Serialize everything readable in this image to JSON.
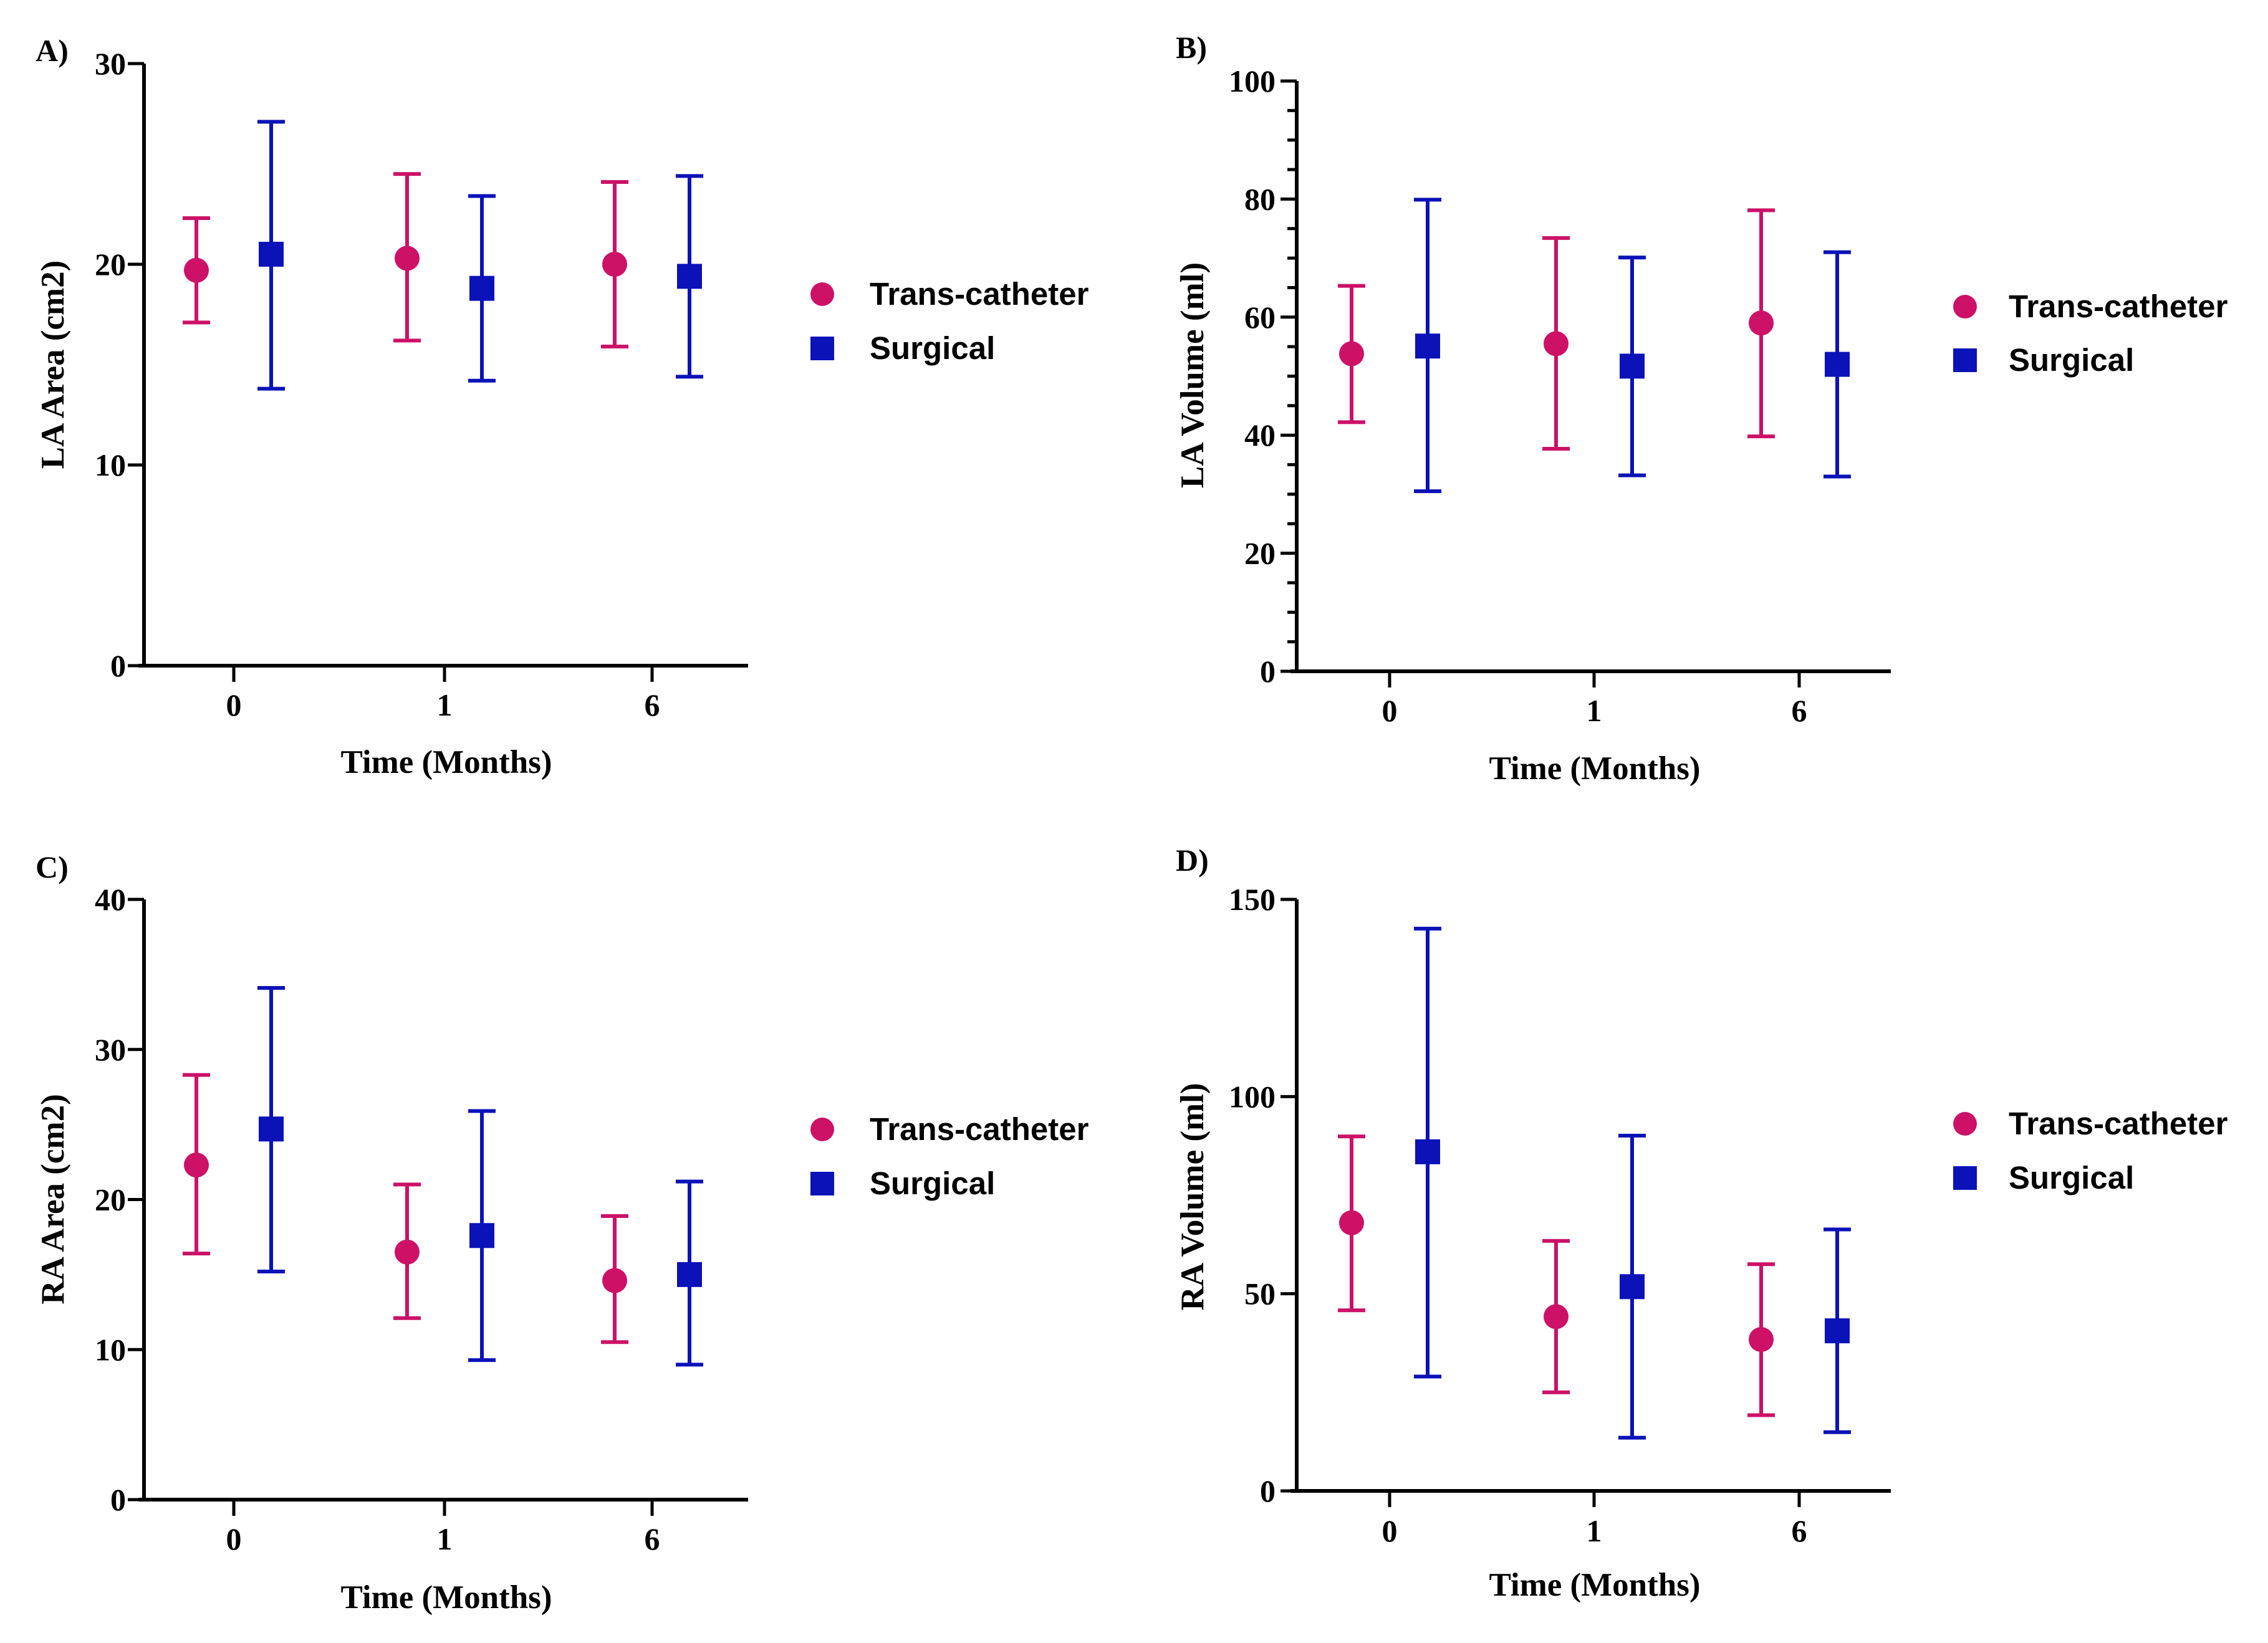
{
  "figure": {
    "colors": {
      "trans_catheter": "#CC1167",
      "surgical": "#0A12B8",
      "axis": "#000000"
    },
    "legend": [
      {
        "name": "Trans-catheter",
        "marker": "circle"
      },
      {
        "name": "Surgical",
        "marker": "square"
      }
    ]
  },
  "chart_data": [
    {
      "id": "A",
      "panel_label": "A)",
      "type": "scatter",
      "xlabel": "Time (Months)",
      "ylabel": "LA Area (cm2)",
      "categories": [
        "0",
        "1",
        "6"
      ],
      "ylim": [
        0,
        30
      ],
      "yticks": [
        0,
        10,
        20,
        30
      ],
      "minor_step": 0,
      "error_bars": "mean ± SD",
      "series": [
        {
          "name": "Trans-catheter",
          "marker": "circle",
          "values": [
            19.7,
            20.3,
            20.0
          ],
          "lower": [
            17.1,
            16.2,
            15.9
          ],
          "upper": [
            22.3,
            24.5,
            24.1
          ]
        },
        {
          "name": "Surgical",
          "marker": "square",
          "values": [
            20.5,
            18.8,
            19.4
          ],
          "lower": [
            13.8,
            14.2,
            14.4
          ],
          "upper": [
            27.1,
            23.4,
            24.4
          ]
        }
      ]
    },
    {
      "id": "B",
      "panel_label": "B)",
      "type": "scatter",
      "xlabel": "Time (Months)",
      "ylabel": "LA Volume (ml)",
      "categories": [
        "0",
        "1",
        "6"
      ],
      "ylim": [
        0,
        100
      ],
      "yticks": [
        0,
        20,
        40,
        60,
        80,
        100
      ],
      "minor_step": 5,
      "error_bars": "mean ± SD",
      "series": [
        {
          "name": "Trans-catheter",
          "marker": "circle",
          "values": [
            53.8,
            55.5,
            59.0
          ],
          "lower": [
            42.2,
            37.7,
            39.8
          ],
          "upper": [
            65.3,
            73.4,
            78.1
          ]
        },
        {
          "name": "Surgical",
          "marker": "square",
          "values": [
            55.1,
            51.7,
            52.0
          ],
          "lower": [
            30.5,
            33.2,
            33.0
          ],
          "upper": [
            79.9,
            70.1,
            71.0
          ]
        }
      ]
    },
    {
      "id": "C",
      "panel_label": "C)",
      "type": "scatter",
      "xlabel": "Time (Months)",
      "ylabel": "RA Area (cm2)",
      "categories": [
        "0",
        "1",
        "6"
      ],
      "ylim": [
        0,
        40
      ],
      "yticks": [
        0,
        10,
        20,
        30,
        40
      ],
      "minor_step": 0,
      "error_bars": "mean ± SD",
      "series": [
        {
          "name": "Trans-catheter",
          "marker": "circle",
          "values": [
            22.3,
            16.5,
            14.6
          ],
          "lower": [
            16.4,
            12.1,
            10.5
          ],
          "upper": [
            28.3,
            21.0,
            18.9
          ]
        },
        {
          "name": "Surgical",
          "marker": "square",
          "values": [
            24.7,
            17.6,
            15.0
          ],
          "lower": [
            15.2,
            9.3,
            9.0
          ],
          "upper": [
            34.1,
            25.9,
            21.2
          ]
        }
      ]
    },
    {
      "id": "D",
      "panel_label": "D)",
      "type": "scatter",
      "xlabel": "Time (Months)",
      "ylabel": "RA Volume (ml)",
      "categories": [
        "0",
        "1",
        "6"
      ],
      "ylim": [
        0,
        150
      ],
      "yticks": [
        0,
        50,
        100,
        150
      ],
      "minor_step": 0,
      "error_bars": "mean ± SD",
      "series": [
        {
          "name": "Trans-catheter",
          "marker": "circle",
          "values": [
            68.0,
            44.2,
            38.4
          ],
          "lower": [
            45.8,
            25.0,
            19.2
          ],
          "upper": [
            89.9,
            63.4,
            57.5
          ]
        },
        {
          "name": "Surgical",
          "marker": "square",
          "values": [
            86.0,
            51.8,
            40.6
          ],
          "lower": [
            29.0,
            13.5,
            14.9
          ],
          "upper": [
            142.6,
            90.1,
            66.3
          ]
        }
      ]
    }
  ]
}
